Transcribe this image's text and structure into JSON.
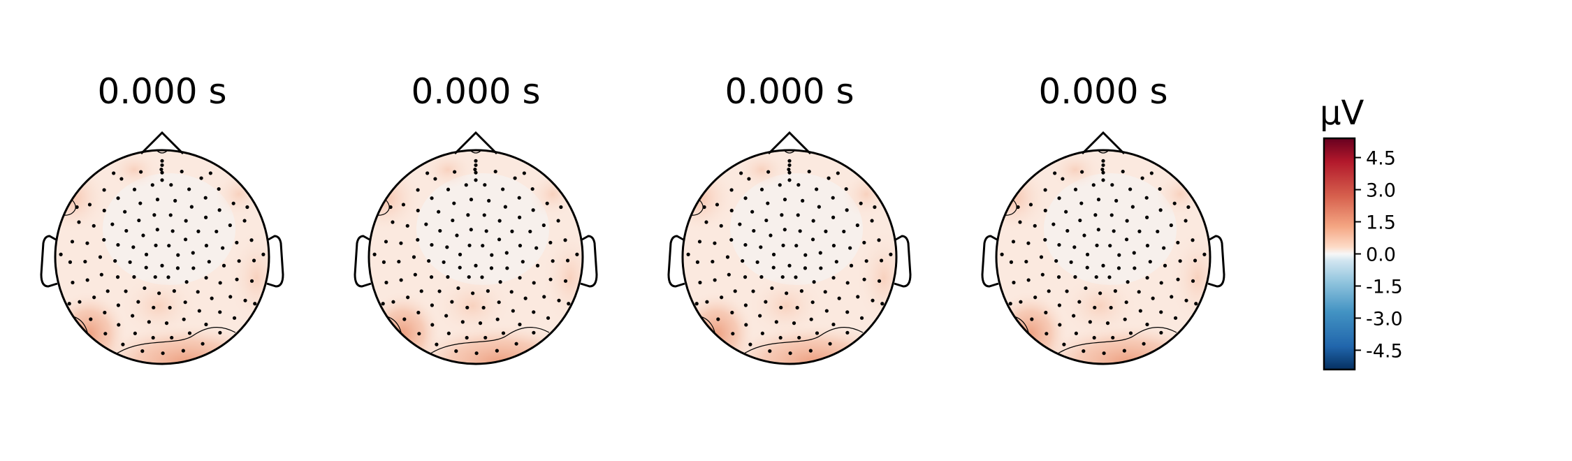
{
  "chart_data": {
    "type": "heatmap",
    "subtype": "topomap",
    "panels": [
      {
        "title": "0.000 s"
      },
      {
        "title": "0.000 s"
      },
      {
        "title": "0.000 s"
      },
      {
        "title": "0.000 s"
      }
    ],
    "colorbar": {
      "unit": "µV",
      "colormap": "RdBu_r",
      "range": [
        -5.4,
        5.4
      ],
      "ticks": [
        4.5,
        3.0,
        1.5,
        0.0,
        -1.5,
        -3.0,
        -4.5
      ],
      "tick_labels": [
        "4.5",
        "3.0",
        "1.5",
        "0.0",
        "-1.5",
        "-3.0",
        "-4.5"
      ]
    },
    "sensor_count_per_panel": 128,
    "colors": {
      "positive_max": "#67001f",
      "positive": "#d6604d",
      "neutral": "#f7f7f7",
      "negative": "#4393c3",
      "negative_max": "#053061"
    }
  }
}
